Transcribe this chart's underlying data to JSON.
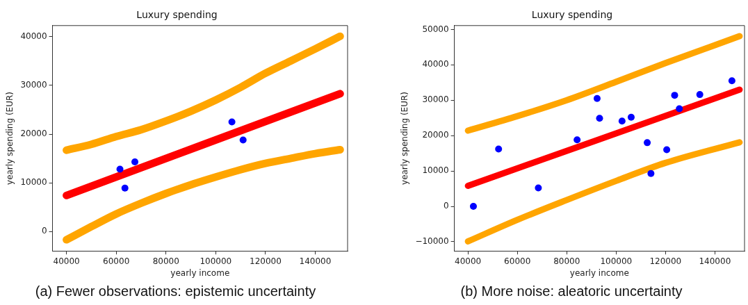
{
  "chart_data": [
    {
      "type": "scatter",
      "title": "Luxury spending",
      "xlabel": "yearly income",
      "ylabel": "yearly spending (EUR)",
      "xlim": [
        34400,
        153000
      ],
      "ylim": [
        -4000,
        42300
      ],
      "xticks": [
        40000,
        60000,
        80000,
        100000,
        120000,
        140000
      ],
      "yticks": [
        0,
        10000,
        20000,
        30000,
        40000
      ],
      "grid": false,
      "legend": false,
      "annotations": [
        "(a) Fewer observations: epistemic uncertainty"
      ],
      "series": [
        {
          "type": "line",
          "marker": "none",
          "color": "#ffa500",
          "x": [
            40000,
            50000,
            60000,
            70000,
            80000,
            90000,
            100000,
            110000,
            120000,
            130000,
            140000,
            150000
          ],
          "values": [
            16700,
            17900,
            19500,
            20900,
            22700,
            24700,
            27000,
            29600,
            32500,
            35000,
            37500,
            40100
          ]
        },
        {
          "type": "line",
          "marker": "none",
          "color": "#ffa500",
          "x": [
            40000,
            50000,
            60000,
            70000,
            80000,
            90000,
            100000,
            110000,
            120000,
            130000,
            140000,
            150000
          ],
          "values": [
            -1700,
            1000,
            3600,
            5800,
            7800,
            9600,
            11200,
            12700,
            14000,
            15000,
            16000,
            16800
          ]
        },
        {
          "type": "line",
          "marker": "none",
          "color": "#ff0000",
          "x": [
            40000,
            150000
          ],
          "values": [
            7400,
            28300
          ]
        },
        {
          "marker": "circle",
          "color": "#0000ff",
          "x": [
            61500,
            63500,
            67500,
            106500,
            111000
          ],
          "values": [
            12800,
            8900,
            14300,
            22500,
            18800
          ]
        }
      ]
    },
    {
      "type": "scatter",
      "title": "Luxury spending",
      "xlabel": "yearly income",
      "ylabel": "yearly spending (EUR)",
      "xlim": [
        34500,
        152000
      ],
      "ylim": [
        -12600,
        51100
      ],
      "xticks": [
        40000,
        60000,
        80000,
        100000,
        120000,
        140000
      ],
      "yticks": [
        {
          "value": -10000,
          "label": "−10000"
        },
        0,
        10000,
        20000,
        30000,
        40000,
        50000
      ],
      "grid": false,
      "legend": false,
      "annotations": [
        "(b) More noise: aleatoric uncertainty"
      ],
      "series": [
        {
          "type": "line",
          "marker": "none",
          "color": "#ffa500",
          "x": [
            40000,
            60000,
            80000,
            100000,
            120000,
            150000
          ],
          "values": [
            21400,
            25500,
            30000,
            35200,
            40500,
            48100
          ]
        },
        {
          "type": "line",
          "marker": "none",
          "color": "#ffa500",
          "x": [
            40000,
            60000,
            80000,
            100000,
            120000,
            150000
          ],
          "values": [
            -9900,
            -3800,
            1800,
            7200,
            12300,
            18100
          ]
        },
        {
          "type": "line",
          "marker": "none",
          "color": "#ff0000",
          "x": [
            40000,
            150000
          ],
          "values": [
            5800,
            33000
          ]
        },
        {
          "marker": "circle",
          "color": "#0000ff",
          "x": [
            42200,
            52400,
            68500,
            84200,
            92300,
            93300,
            102400,
            106100,
            112600,
            114100,
            120500,
            123700,
            125600,
            133900,
            146900
          ],
          "values": [
            0,
            16200,
            5200,
            18800,
            30500,
            24900,
            24100,
            25200,
            18000,
            9300,
            16000,
            31400,
            27600,
            31600,
            35500
          ]
        }
      ]
    }
  ]
}
